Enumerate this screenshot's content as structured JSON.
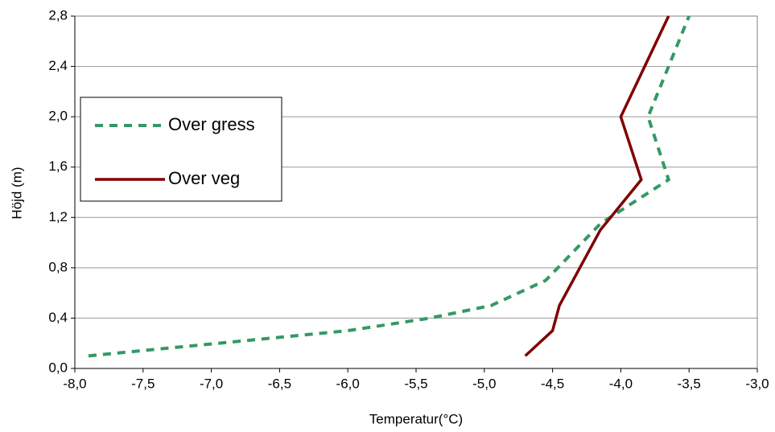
{
  "chart_data": {
    "type": "line",
    "x_label": "Temperatur(°C)",
    "y_label": "Höjd (m)",
    "xlim": [
      -8,
      -3
    ],
    "xticks": [
      {
        "value": -8,
        "label": "-8,0"
      },
      {
        "value": -7.5,
        "label": "-7,5"
      },
      {
        "value": -7,
        "label": "-7,0"
      },
      {
        "value": -6.5,
        "label": "-6,5"
      },
      {
        "value": -6,
        "label": "-6,0"
      },
      {
        "value": -5.5,
        "label": "-5,5"
      },
      {
        "value": -5,
        "label": "-5,0"
      },
      {
        "value": -4.5,
        "label": "-4,5"
      },
      {
        "value": -4,
        "label": "-4,0"
      },
      {
        "value": -3.5,
        "label": "-3,5"
      },
      {
        "value": -3,
        "label": "-3,0"
      }
    ],
    "ylim": [
      0,
      2.8
    ],
    "yticks": [
      {
        "value": 0,
        "label": "0,0"
      },
      {
        "value": 0.4,
        "label": "0,4"
      },
      {
        "value": 0.8,
        "label": "0,8"
      },
      {
        "value": 1.2,
        "label": "1,2"
      },
      {
        "value": 1.6,
        "label": "1,6"
      },
      {
        "value": 2.0,
        "label": "2,0"
      },
      {
        "value": 2.4,
        "label": "2,4"
      },
      {
        "value": 2.8,
        "label": "2,8"
      }
    ],
    "grid": true,
    "legend": "left",
    "series": [
      {
        "name": "Over gress",
        "color": "#339966",
        "dashed": true,
        "x": [
          -7.9,
          -6.0,
          -5.4,
          -4.95,
          -4.55,
          -4.15,
          -3.65,
          -3.8,
          -3.5
        ],
        "values": [
          0.1,
          0.3,
          0.4,
          0.5,
          0.7,
          1.15,
          1.5,
          2.0,
          2.8
        ]
      },
      {
        "name": "Over veg",
        "color": "#800000",
        "dashed": false,
        "x": [
          -4.7,
          -4.5,
          -4.45,
          -4.15,
          -3.85,
          -4.0,
          -3.65
        ],
        "values": [
          0.1,
          0.3,
          0.5,
          1.1,
          1.5,
          2.0,
          2.8
        ]
      }
    ]
  }
}
